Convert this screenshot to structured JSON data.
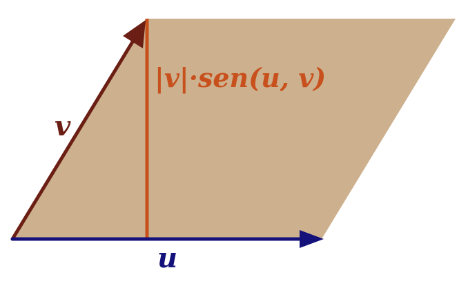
{
  "diagram": {
    "labels": {
      "v": "v",
      "u": "u",
      "height": "|v|·sen(u, v)"
    },
    "colors": {
      "background": "#ffffff",
      "parallelogram_fill": "#cdb08d",
      "vector_v": "#6b1f14",
      "vector_u": "#14127a",
      "height_line": "#c8501c",
      "height_label": "#c8501c"
    }
  }
}
